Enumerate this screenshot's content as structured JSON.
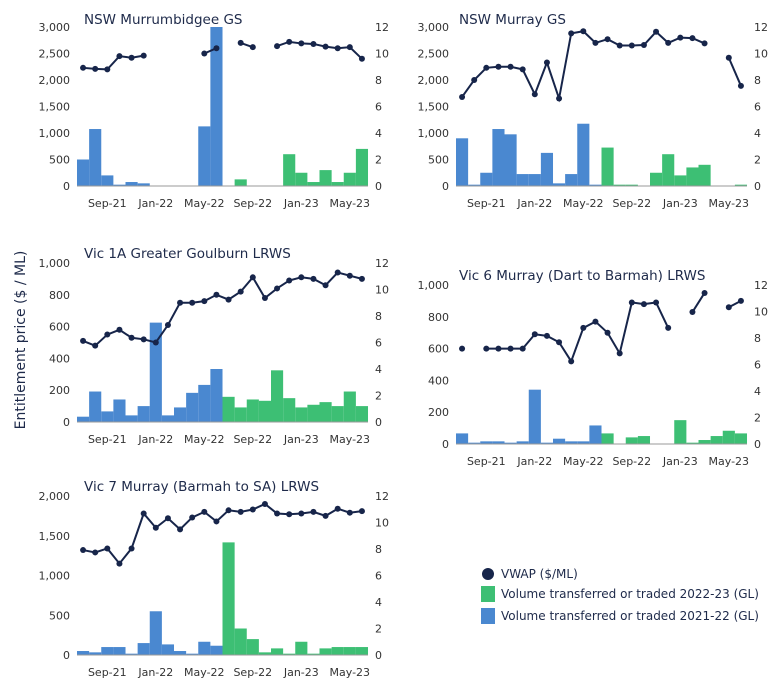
{
  "colors": {
    "vwap": "#17254a",
    "green": "#3dbf74",
    "blue": "#4a88d0",
    "axis": "#9a9a9a",
    "text": "#1e2a4a"
  },
  "shared_ylabel": "Entitlement price ($ / ML)",
  "legend": [
    {
      "key": "vwap",
      "label": "VWAP ($/ML)"
    },
    {
      "key": "green",
      "label": "Volume transferred or traded 2022-23 (GL)"
    },
    {
      "key": "blue",
      "label": "Volume transferred or traded 2021-22 (GL)"
    }
  ],
  "chart_data": [
    {
      "type": "bar+line",
      "title": "NSW Murrumbidgee GS",
      "ylim_left": [
        0,
        3000
      ],
      "yticks_left": [
        "0",
        "500",
        "1,000",
        "1,500",
        "2,000",
        "2,500",
        "3,000"
      ],
      "ylim_right": [
        0,
        12
      ],
      "yticks_right": [
        "0",
        "2",
        "4",
        "6",
        "8",
        "10",
        "12"
      ],
      "xtick_labels": [
        "Sep-21",
        "Jan-22",
        "May-22",
        "Sep-22",
        "Jan-23",
        "May-23"
      ],
      "volume_2021_22": [
        2.0,
        4.3,
        0.8,
        0.1,
        0.3,
        0.2,
        0.0,
        0.0,
        0.0,
        0.0,
        4.5,
        12.0
      ],
      "volume_2022_23": [
        0.0,
        0.5,
        0.0,
        0.0,
        0.0,
        2.4,
        1.0,
        0.3,
        1.2,
        0.3,
        1.0,
        2.8
      ],
      "vwap": [
        2230,
        2210,
        2200,
        2450,
        2420,
        2460,
        null,
        null,
        null,
        null,
        2500,
        2600,
        null,
        2700,
        2620,
        null,
        2640,
        2720,
        2690,
        2680,
        2630,
        2600,
        2620,
        2400
      ]
    },
    {
      "type": "bar+line",
      "title": "NSW Murray GS",
      "ylim_left": [
        0,
        3000
      ],
      "yticks_left": [
        "0",
        "500",
        "1,000",
        "1,500",
        "2,000",
        "2,500",
        "3,000"
      ],
      "ylim_right": [
        0,
        12
      ],
      "yticks_right": [
        "0",
        "2",
        "4",
        "6",
        "8",
        "10",
        "12"
      ],
      "xtick_labels": [
        "Sep-21",
        "Jan-22",
        "May-22",
        "Sep-22",
        "Jan-23",
        "May-23"
      ],
      "volume_2021_22": [
        3.6,
        0.1,
        1.0,
        4.3,
        3.9,
        0.9,
        0.9,
        2.5,
        0.2,
        0.9,
        4.7,
        0.1
      ],
      "volume_2022_23": [
        2.9,
        0.1,
        0.1,
        0.0,
        1.0,
        2.4,
        0.8,
        1.4,
        1.6,
        0.0,
        0.0,
        0.1
      ],
      "vwap": [
        1680,
        2000,
        2230,
        2250,
        2250,
        2200,
        1730,
        2330,
        1650,
        2880,
        2920,
        2700,
        2770,
        2650,
        2650,
        2660,
        2910,
        2700,
        2800,
        2790,
        2690,
        null,
        2420,
        1890
      ]
    },
    {
      "type": "bar+line",
      "title": "Vic 1A Greater Goulburn LRWS",
      "ylim_left": [
        0,
        1000
      ],
      "yticks_left": [
        "0",
        "200",
        "400",
        "600",
        "800",
        "1,000"
      ],
      "ylim_right": [
        0,
        12
      ],
      "yticks_right": [
        "0",
        "2",
        "4",
        "6",
        "8",
        "10",
        "12"
      ],
      "xtick_labels": [
        "Sep-21",
        "Jan-22",
        "May-22",
        "Sep-22",
        "Jan-23",
        "May-23"
      ],
      "volume_2021_22": [
        0.4,
        2.3,
        0.8,
        1.7,
        0.5,
        1.2,
        7.5,
        0.5,
        1.1,
        2.2,
        2.8,
        4.0
      ],
      "volume_2022_23": [
        1.9,
        1.1,
        1.7,
        1.6,
        3.9,
        1.8,
        1.1,
        1.3,
        1.5,
        1.2,
        2.3,
        1.2
      ],
      "vwap": [
        510,
        480,
        550,
        580,
        530,
        520,
        500,
        610,
        750,
        750,
        760,
        800,
        770,
        820,
        910,
        780,
        840,
        890,
        910,
        900,
        860,
        940,
        920,
        900
      ]
    },
    {
      "type": "bar+line",
      "title": "Vic 6 Murray (Dart to Barmah) LRWS",
      "ylim_left": [
        0,
        1000
      ],
      "yticks_left": [
        "0",
        "200",
        "400",
        "600",
        "800",
        "1,000"
      ],
      "ylim_right": [
        0,
        12
      ],
      "yticks_right": [
        "0",
        "2",
        "4",
        "6",
        "8",
        "10",
        "12"
      ],
      "xtick_labels": [
        "Sep-21",
        "Jan-22",
        "May-22",
        "Sep-22",
        "Jan-23",
        "May-23"
      ],
      "volume_2021_22": [
        0.8,
        0.1,
        0.2,
        0.2,
        0.1,
        0.2,
        4.1,
        0.1,
        0.4,
        0.2,
        0.2,
        1.4
      ],
      "volume_2022_23": [
        0.8,
        0.0,
        0.5,
        0.6,
        0.0,
        0.0,
        1.8,
        0.1,
        0.3,
        0.6,
        1.0,
        0.8
      ],
      "vwap": [
        600,
        null,
        600,
        600,
        600,
        600,
        690,
        680,
        640,
        520,
        730,
        770,
        700,
        570,
        890,
        880,
        890,
        730,
        null,
        830,
        950,
        null,
        860,
        900
      ]
    },
    {
      "type": "bar+line",
      "title": "Vic 7 Murray (Barmah to SA) LRWS",
      "ylim_left": [
        0,
        2000
      ],
      "yticks_left": [
        "0",
        "500",
        "1,000",
        "1,500",
        "2,000"
      ],
      "ylim_right": [
        0,
        12
      ],
      "yticks_right": [
        "0",
        "2",
        "4",
        "6",
        "8",
        "10",
        "12"
      ],
      "xtick_labels": [
        "Sep-21",
        "Jan-22",
        "May-22",
        "Sep-22",
        "Jan-23",
        "May-23"
      ],
      "volume_2021_22": [
        0.3,
        0.2,
        0.6,
        0.6,
        0.1,
        0.9,
        3.3,
        0.8,
        0.3,
        0.1,
        1.0,
        0.7
      ],
      "volume_2022_23": [
        8.5,
        2.0,
        1.2,
        0.2,
        0.5,
        0.1,
        1.0,
        0.1,
        0.5,
        0.6,
        0.6,
        0.6
      ],
      "vwap": [
        1320,
        1290,
        1340,
        1150,
        1340,
        1780,
        1600,
        1720,
        1580,
        1730,
        1800,
        1680,
        1820,
        1800,
        1830,
        1900,
        1780,
        1770,
        1780,
        1800,
        1750,
        1840,
        1790,
        1810
      ]
    }
  ]
}
